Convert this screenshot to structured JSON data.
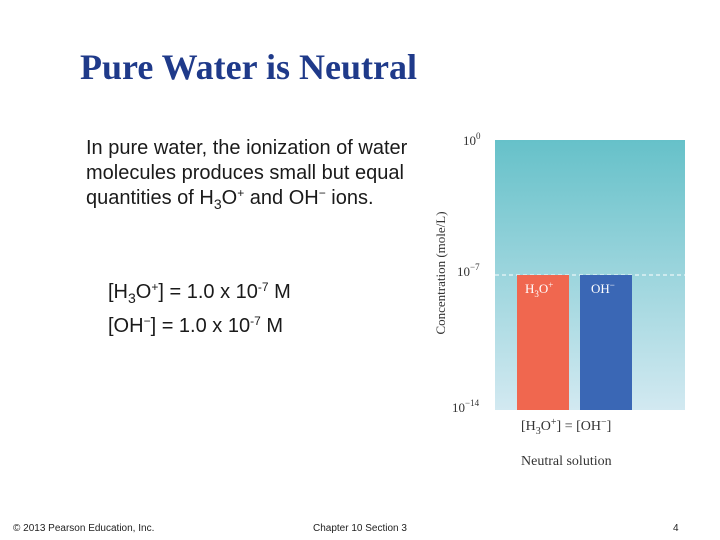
{
  "title": "Pure Water is Neutral",
  "body": {
    "intro_prefix": "In ",
    "intro_bold": "pure water",
    "intro_rest": ", the ionization of water molecules produces small but equal quantities of ",
    "h_main": "H",
    "h_sub": "3",
    "h_o": "O",
    "h_sup": "+",
    "and_text": " and OH",
    "oh_sup": "−",
    "ions_text": "  ions."
  },
  "equations": {
    "eq1_left": "[H",
    "eq1_sub": "3",
    "eq1_o": "O",
    "eq1_sup": "+",
    "eq1_right": "] = 1.0 x 10",
    "eq1_exp": "-7",
    "eq1_unit": " M",
    "eq2_left": "[OH",
    "eq2_sup": "−",
    "eq2_right": "]   = 1.0 x 10",
    "eq2_exp": "-7",
    "eq2_unit": " M"
  },
  "chart_data": {
    "type": "bar",
    "ylabel": "Concentration (mole/L)",
    "yscale": "log",
    "ylim": [
      1e-14,
      1
    ],
    "ytick_base": [
      "10",
      "10",
      "10"
    ],
    "ytick_exp": [
      "0",
      "−7",
      "−14"
    ],
    "categories": [
      "H3O+",
      "OH−"
    ],
    "category_labels": [
      {
        "main": "H",
        "sub": "3",
        "o": "O",
        "sup": "+"
      },
      {
        "main": "OH",
        "sup": "−"
      }
    ],
    "values": [
      1e-07,
      1e-07
    ],
    "colors": {
      "h3o": "#f0674f",
      "oh": "#3a67b5",
      "bg_top": "#66c1c9",
      "bg_bottom": "#d2e9f1"
    },
    "equality": {
      "left_main": "[H",
      "left_sub": "3",
      "left_o": "O",
      "left_sup": "+",
      "mid": "] = [OH",
      "mid_sup": "−",
      "right": "]"
    },
    "caption": "Neutral solution"
  },
  "footer": {
    "copyright": "© 2013 Pearson Education, Inc.",
    "chapter": "Chapter 10 Section 3",
    "page": "4"
  }
}
